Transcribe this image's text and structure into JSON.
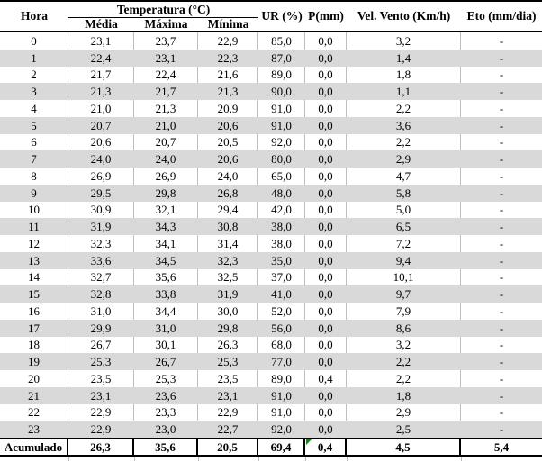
{
  "table": {
    "columns": {
      "hora": "Hora",
      "temperatura_group": "Temperatura (°C)",
      "temp_media": "Média",
      "temp_maxima": "Máxima",
      "temp_minima": "Mínima",
      "ur": "UR (%)",
      "p": "P(mm)",
      "vel_vento": "Vel. Vento (Km/h)",
      "eto": "Eto (mm/dia)"
    },
    "rows": [
      [
        "0",
        "23,1",
        "23,7",
        "22,9",
        "85,0",
        "0,0",
        "3,2",
        "-"
      ],
      [
        "1",
        "22,4",
        "23,1",
        "22,3",
        "87,0",
        "0,0",
        "1,4",
        "-"
      ],
      [
        "2",
        "21,7",
        "22,4",
        "21,6",
        "89,0",
        "0,0",
        "1,8",
        "-"
      ],
      [
        "3",
        "21,3",
        "21,7",
        "21,3",
        "90,0",
        "0,0",
        "1,1",
        "-"
      ],
      [
        "4",
        "21,0",
        "21,3",
        "20,9",
        "91,0",
        "0,0",
        "2,2",
        "-"
      ],
      [
        "5",
        "20,7",
        "21,0",
        "20,6",
        "91,0",
        "0,0",
        "3,6",
        "-"
      ],
      [
        "6",
        "20,6",
        "20,7",
        "20,5",
        "92,0",
        "0,0",
        "2,2",
        "-"
      ],
      [
        "7",
        "24,0",
        "24,0",
        "20,6",
        "80,0",
        "0,0",
        "2,9",
        "-"
      ],
      [
        "8",
        "26,9",
        "26,9",
        "24,0",
        "65,0",
        "0,0",
        "4,7",
        "-"
      ],
      [
        "9",
        "29,5",
        "29,8",
        "26,8",
        "48,0",
        "0,0",
        "5,8",
        "-"
      ],
      [
        "10",
        "30,9",
        "32,1",
        "29,4",
        "42,0",
        "0,0",
        "5,0",
        "-"
      ],
      [
        "11",
        "31,9",
        "34,3",
        "30,8",
        "38,0",
        "0,0",
        "6,5",
        "-"
      ],
      [
        "12",
        "32,3",
        "34,1",
        "31,4",
        "38,0",
        "0,0",
        "7,2",
        "-"
      ],
      [
        "13",
        "33,6",
        "34,5",
        "32,3",
        "35,0",
        "0,0",
        "9,4",
        "-"
      ],
      [
        "14",
        "32,7",
        "35,6",
        "32,5",
        "37,0",
        "0,0",
        "10,1",
        "-"
      ],
      [
        "15",
        "32,8",
        "33,8",
        "31,9",
        "41,0",
        "0,0",
        "9,7",
        "-"
      ],
      [
        "16",
        "31,0",
        "34,4",
        "30,0",
        "52,0",
        "0,0",
        "7,9",
        "-"
      ],
      [
        "17",
        "29,9",
        "31,0",
        "29,8",
        "56,0",
        "0,0",
        "8,6",
        "-"
      ],
      [
        "18",
        "26,7",
        "30,1",
        "26,3",
        "68,0",
        "0,0",
        "3,2",
        "-"
      ],
      [
        "19",
        "25,3",
        "26,7",
        "25,3",
        "77,0",
        "0,0",
        "2,2",
        "-"
      ],
      [
        "20",
        "23,5",
        "25,3",
        "23,5",
        "89,0",
        "0,4",
        "2,2",
        "-"
      ],
      [
        "21",
        "23,1",
        "23,6",
        "23,1",
        "91,0",
        "0,0",
        "1,8",
        "-"
      ],
      [
        "22",
        "22,9",
        "23,3",
        "22,9",
        "91,0",
        "0,0",
        "2,9",
        "-"
      ],
      [
        "23",
        "22,9",
        "23,0",
        "22,7",
        "92,0",
        "0,0",
        "2,5",
        "-"
      ]
    ],
    "footer": {
      "label": "Acumulado",
      "values": [
        "26,3",
        "35,6",
        "20,5",
        "69,4",
        "0,4",
        "4,5",
        "5,4"
      ],
      "marker_cell_index": 4
    },
    "colors": {
      "alt_row": "#d9d9d9",
      "grid_line": "#bdbdbd",
      "table_border": "#000000",
      "marker_green": "#1e7e1e",
      "text": "#000000"
    }
  }
}
